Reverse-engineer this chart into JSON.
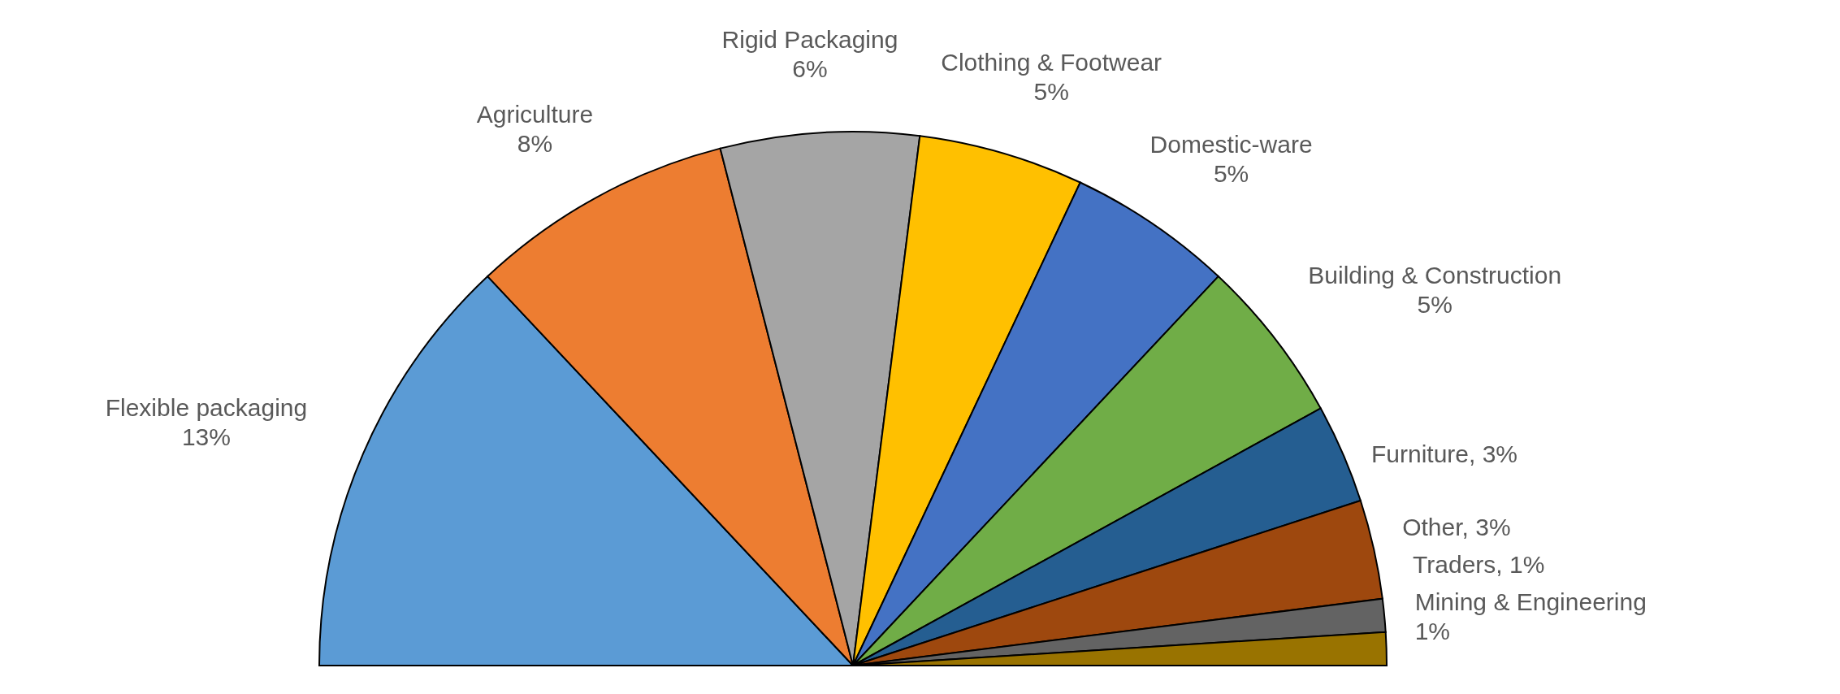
{
  "chart_data": {
    "type": "pie",
    "categories": [
      "Flexible packaging",
      "Agriculture",
      "Rigid Packaging",
      "Clothing & Footwear",
      "Domestic-ware",
      "Building & Construction",
      "Furniture",
      "Other",
      "Traders",
      "Mining & Engineering"
    ],
    "values": [
      13,
      8,
      6,
      5,
      5,
      5,
      3,
      3,
      1,
      1
    ],
    "value_labels": [
      "13%",
      "8%",
      "6%",
      "5%",
      "5%",
      "5%",
      ", 3%",
      ", 3%",
      ", 1%",
      "1%"
    ],
    "colors": [
      "#5b9bd5",
      "#ed7d31",
      "#a5a5a5",
      "#ffc000",
      "#4472c4",
      "#70ad47",
      "#255e91",
      "#9e480e",
      "#636363",
      "#997300"
    ]
  }
}
